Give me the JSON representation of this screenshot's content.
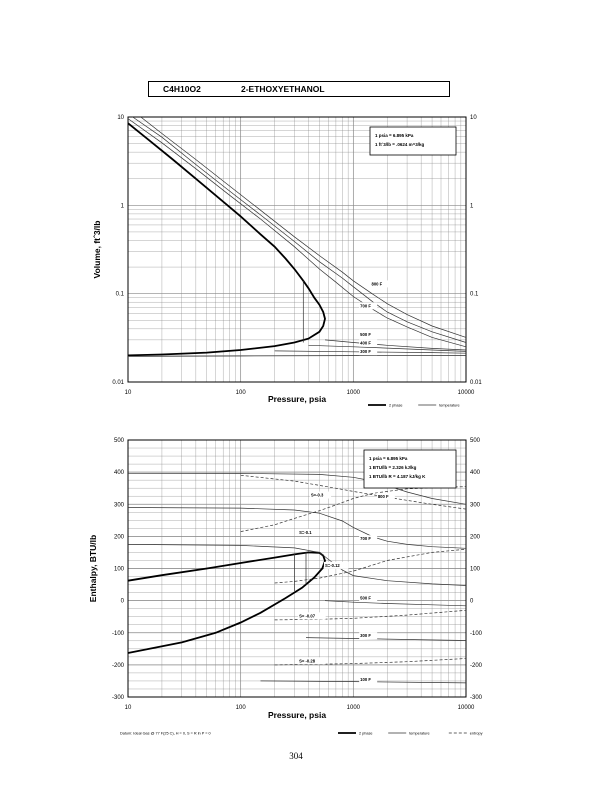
{
  "header": {
    "formula": "C4H10O2",
    "name": "2-ETHOXYETHANOL"
  },
  "page_number": "304",
  "chart_data": [
    {
      "type": "line",
      "xlabel": "Pressure,  psia",
      "ylabel": "Volume, ft^3/lb",
      "xscale": "log",
      "yscale": "log",
      "xlim": [
        10,
        10000
      ],
      "ylim": [
        0.01,
        10
      ],
      "x_ticks": [
        10,
        100,
        1000,
        10000
      ],
      "x_tick_labels": [
        "10",
        "100",
        "1000",
        "10000"
      ],
      "y_ticks": [
        0.01,
        0.1,
        1,
        10
      ],
      "y_tick_labels": [
        "0.01",
        "0.1",
        "1",
        "10"
      ],
      "grid": true,
      "legend_box": [
        "1 psia  =  6.895 kPa",
        "1 ft^3/lb  =  .0624 m^3/kg"
      ],
      "legend_position": "top-right",
      "bottom_legend": [
        {
          "label": "2 phase",
          "style": "thick"
        },
        {
          "label": "temperature",
          "style": "thin"
        }
      ],
      "series": [
        {
          "style": "thick",
          "points": [
            [
              10,
              8.5
            ],
            [
              15,
              5.6
            ],
            [
              25,
              3.3
            ],
            [
              40,
              2.0
            ],
            [
              70,
              1.1
            ],
            [
              100,
              0.75
            ],
            [
              150,
              0.47
            ],
            [
              200,
              0.34
            ],
            [
              250,
              0.25
            ],
            [
              300,
              0.19
            ],
            [
              360,
              0.14
            ],
            [
              400,
              0.115
            ],
            [
              450,
              0.09
            ],
            [
              500,
              0.075
            ],
            [
              540,
              0.062
            ],
            [
              560,
              0.052
            ],
            [
              540,
              0.043
            ],
            [
              500,
              0.037
            ],
            [
              400,
              0.031
            ],
            [
              300,
              0.028
            ],
            [
              200,
              0.0255
            ],
            [
              100,
              0.023
            ],
            [
              50,
              0.0215
            ],
            [
              20,
              0.0205
            ],
            [
              10,
              0.02
            ]
          ]
        },
        {
          "style": "thin",
          "points": [
            [
              10,
              9.6
            ],
            [
              20,
              5.1
            ],
            [
              40,
              2.6
            ],
            [
              80,
              1.3
            ],
            [
              150,
              0.7
            ],
            [
              300,
              0.34
            ],
            [
              500,
              0.19
            ],
            [
              700,
              0.135
            ],
            [
              1000,
              0.093
            ],
            [
              1500,
              0.066
            ],
            [
              2000,
              0.053
            ],
            [
              3000,
              0.042
            ],
            [
              5000,
              0.032
            ],
            [
              10000,
              0.025
            ]
          ]
        },
        {
          "style": "thin",
          "points": [
            [
              11,
              10
            ],
            [
              20,
              5.9
            ],
            [
              40,
              2.9
            ],
            [
              80,
              1.45
            ],
            [
              150,
              0.78
            ],
            [
              300,
              0.39
            ],
            [
              500,
              0.23
            ],
            [
              800,
              0.15
            ],
            [
              1000,
              0.12
            ],
            [
              1500,
              0.08
            ],
            [
              2000,
              0.062
            ],
            [
              3000,
              0.048
            ],
            [
              5000,
              0.037
            ],
            [
              10000,
              0.028
            ]
          ]
        },
        {
          "style": "thin",
          "points": [
            [
              13,
              10
            ],
            [
              20,
              6.5
            ],
            [
              40,
              3.3
            ],
            [
              80,
              1.65
            ],
            [
              150,
              0.88
            ],
            [
              300,
              0.44
            ],
            [
              500,
              0.27
            ],
            [
              800,
              0.175
            ],
            [
              1000,
              0.14
            ],
            [
              1500,
              0.098
            ],
            [
              2000,
              0.077
            ],
            [
              3000,
              0.058
            ],
            [
              5000,
              0.043
            ],
            [
              10000,
              0.032
            ]
          ]
        },
        {
          "style": "thin",
          "points": [
            [
              560,
              0.03
            ],
            [
              1000,
              0.028
            ],
            [
              2000,
              0.026
            ],
            [
              5000,
              0.024
            ],
            [
              10000,
              0.023
            ]
          ]
        },
        {
          "style": "thin",
          "points": [
            [
              400,
              0.026
            ],
            [
              1000,
              0.025
            ],
            [
              2000,
              0.0242
            ],
            [
              5000,
              0.023
            ],
            [
              10000,
              0.0222
            ]
          ]
        },
        {
          "style": "thin",
          "points": [
            [
              200,
              0.0225
            ],
            [
              1000,
              0.022
            ],
            [
              5000,
              0.0215
            ],
            [
              10000,
              0.0212
            ]
          ]
        },
        {
          "style": "thin",
          "points": [
            [
              10,
              0.0195
            ],
            [
              100,
              0.0197
            ],
            [
              1000,
              0.0199
            ],
            [
              10000,
              0.02
            ]
          ]
        },
        {
          "style": "thin",
          "points": [
            [
              360,
              0.14
            ],
            [
              360,
              0.028
            ]
          ]
        }
      ],
      "annotations": [
        {
          "text": "800 F",
          "x": 1450,
          "y": 0.124
        },
        {
          "text": "700 F",
          "x": 1150,
          "y": 0.07
        },
        {
          "text": "500 F",
          "x": 1150,
          "y": 0.033
        },
        {
          "text": "400 F",
          "x": 1150,
          "y": 0.0265
        },
        {
          "text": "300 F",
          "x": 1150,
          "y": 0.0212
        }
      ]
    },
    {
      "type": "line",
      "xlabel": "Pressure,  psia",
      "ylabel": "Enthalpy, BTU/lb",
      "xscale": "log",
      "xlim": [
        10,
        10000
      ],
      "ylim": [
        -300,
        500
      ],
      "x_ticks": [
        10,
        100,
        1000,
        10000
      ],
      "x_tick_labels": [
        "10",
        "100",
        "1000",
        "10000"
      ],
      "y_ticks": [
        -300,
        -200,
        -100,
        0,
        100,
        200,
        300,
        400,
        500
      ],
      "y_tick_labels": [
        "-300",
        "-200",
        "-100",
        "0",
        "100",
        "200",
        "300",
        "400",
        "500"
      ],
      "y_tick_labels_right": [
        "-300",
        "-200",
        "-100",
        "0",
        "100",
        "200",
        "300",
        "400",
        "500"
      ],
      "grid": true,
      "legend_box": [
        "1 psia  =  6.895 kPa",
        "1 BTU/lb  =  2.326 kJ/kg",
        "1 BTU/lb R  =  4.187 kJ/kg K"
      ],
      "legend_position": "top-right",
      "footnote": "Datum: Ideal Gas @ 77 F(25 C),  H = 0,  S = R ln P = 0",
      "bottom_legend": [
        {
          "label": "2 phase",
          "style": "thick"
        },
        {
          "label": "temperature",
          "style": "thin"
        },
        {
          "label": "entropy",
          "style": "dashed"
        }
      ],
      "series": [
        {
          "style": "thick",
          "points": [
            [
              10,
              62
            ],
            [
              20,
              79
            ],
            [
              50,
              100
            ],
            [
              100,
              117
            ],
            [
              200,
              134
            ],
            [
              300,
              144
            ],
            [
              400,
              150
            ],
            [
              500,
              149
            ],
            [
              540,
              140
            ],
            [
              560,
              124
            ],
            [
              530,
              100
            ],
            [
              450,
              72
            ],
            [
              350,
              40
            ],
            [
              250,
              8
            ],
            [
              150,
              -38
            ],
            [
              100,
              -68
            ],
            [
              60,
              -100
            ],
            [
              30,
              -130
            ],
            [
              10,
              -163
            ]
          ]
        },
        {
          "style": "thin",
          "points": [
            [
              10,
              395
            ],
            [
              100,
              396
            ],
            [
              500,
              393
            ],
            [
              1000,
              384
            ],
            [
              1500,
              372
            ],
            [
              2000,
              358
            ],
            [
              3000,
              338
            ],
            [
              5000,
              318
            ],
            [
              10000,
              300
            ]
          ]
        },
        {
          "style": "thin",
          "points": [
            [
              10,
              290
            ],
            [
              100,
              288
            ],
            [
              300,
              282
            ],
            [
              500,
              272
            ],
            [
              800,
              248
            ],
            [
              1000,
              228
            ],
            [
              1500,
              198
            ],
            [
              2000,
              185
            ],
            [
              3000,
              175
            ],
            [
              5000,
              168
            ],
            [
              10000,
              163
            ]
          ]
        },
        {
          "style": "thin",
          "points": [
            [
              10,
              175
            ],
            [
              100,
              172
            ],
            [
              300,
              164
            ],
            [
              500,
              150
            ],
            [
              800,
              95
            ],
            [
              1000,
              78
            ],
            [
              2000,
              62
            ],
            [
              5000,
              52
            ],
            [
              10000,
              47
            ]
          ]
        },
        {
          "style": "thin",
          "points": [
            [
              560,
              0
            ],
            [
              1000,
              -5
            ],
            [
              2000,
              -9
            ],
            [
              5000,
              -13
            ],
            [
              10000,
              -16
            ]
          ]
        },
        {
          "style": "thin",
          "points": [
            [
              380,
              -115
            ],
            [
              1000,
              -118
            ],
            [
              3000,
              -121
            ],
            [
              10000,
              -124
            ]
          ]
        },
        {
          "style": "thin",
          "points": [
            [
              150,
              -250
            ],
            [
              1000,
              -252
            ],
            [
              5000,
              -255
            ],
            [
              10000,
              -256
            ]
          ]
        },
        {
          "style": "thin",
          "points": [
            [
              300,
              145
            ],
            [
              300,
              30
            ]
          ]
        },
        {
          "style": "thin",
          "points": [
            [
              380,
              151
            ],
            [
              380,
              50
            ]
          ]
        },
        {
          "style": "dashed",
          "points": [
            [
              100,
              390
            ],
            [
              300,
              372
            ],
            [
              600,
              354
            ],
            [
              1000,
              340
            ],
            [
              2000,
              322
            ],
            [
              5000,
              300
            ],
            [
              10000,
              285
            ]
          ]
        },
        {
          "style": "dashed",
          "points": [
            [
              100,
              215
            ],
            [
              200,
              236
            ],
            [
              300,
              256
            ],
            [
              500,
              280
            ],
            [
              700,
              298
            ],
            [
              1000,
              318
            ],
            [
              1500,
              334
            ],
            [
              3000,
              348
            ],
            [
              10000,
              355
            ]
          ]
        },
        {
          "style": "dashed",
          "points": [
            [
              200,
              55
            ],
            [
              300,
              60
            ],
            [
              500,
              70
            ],
            [
              1000,
              92
            ],
            [
              2000,
              125
            ],
            [
              5000,
              150
            ],
            [
              10000,
              160
            ]
          ]
        },
        {
          "style": "dashed",
          "points": [
            [
              200,
              -60
            ],
            [
              500,
              -58
            ],
            [
              1000,
              -55
            ],
            [
              3000,
              -45
            ],
            [
              10000,
              -30
            ]
          ]
        },
        {
          "style": "dashed",
          "points": [
            [
              200,
              -200
            ],
            [
              500,
              -198
            ],
            [
              1000,
              -196
            ],
            [
              3000,
              -190
            ],
            [
              10000,
              -180
            ]
          ]
        }
      ],
      "annotations": [
        {
          "text": "S=-0.3",
          "x": 420,
          "y": 324
        },
        {
          "text": "800 F",
          "x": 1650,
          "y": 320
        },
        {
          "text": "S=-0.1",
          "x": 330,
          "y": 208
        },
        {
          "text": "700 F",
          "x": 1150,
          "y": 188
        },
        {
          "text": "S=-0.12",
          "x": 560,
          "y": 105
        },
        {
          "text": "500 F",
          "x": 1150,
          "y": 3
        },
        {
          "text": "S= -0.07",
          "x": 330,
          "y": -52
        },
        {
          "text": "300 F",
          "x": 1150,
          "y": -114
        },
        {
          "text": "S= -0.28",
          "x": 330,
          "y": -192
        },
        {
          "text": "100 F",
          "x": 1150,
          "y": -250
        }
      ]
    }
  ]
}
